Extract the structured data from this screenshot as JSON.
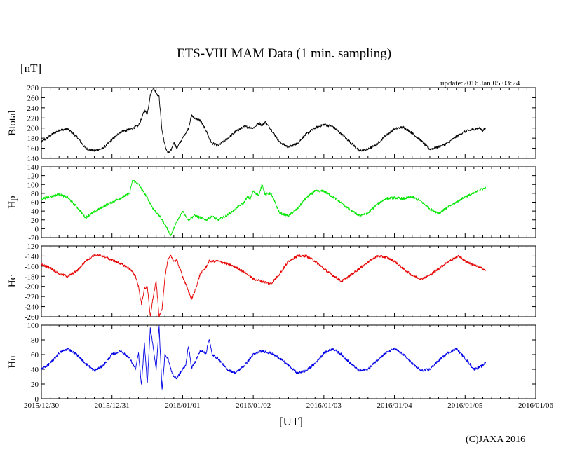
{
  "chart_data": {
    "type": "line",
    "title": "ETS-VIII MAM Data (1 min. sampling)",
    "y_unit": "[nT]",
    "x_unit": "[UT]",
    "update": "update:2016 Jan 05 03:24",
    "credit": "(C)JAXA 2016",
    "x_tick_labels": [
      "2015/12/30",
      "2015/12/31",
      "2016/01/01",
      "2016/01/02",
      "2016/01/03",
      "2016/01/04",
      "2016/01/05",
      "2016/01/06"
    ],
    "x_range_hours": [
      0,
      168
    ],
    "panels": [
      {
        "name": "Btotal",
        "color": "#000000",
        "ylim": [
          140,
          280
        ],
        "yticks": [
          140,
          160,
          180,
          200,
          220,
          240,
          260,
          280
        ],
        "x_hours": [
          0,
          3,
          6,
          9,
          12,
          15,
          18,
          21,
          24,
          27,
          30,
          33,
          34,
          35,
          36,
          37,
          38,
          39,
          40,
          41,
          42,
          43,
          44,
          45,
          46,
          48,
          50,
          51,
          52,
          54,
          56,
          57,
          58,
          60,
          63,
          66,
          69,
          72,
          74,
          75,
          76,
          78,
          81,
          84,
          87,
          90,
          93,
          96,
          99,
          102,
          105,
          108,
          111,
          114,
          117,
          120,
          123,
          126,
          129,
          132,
          135,
          138,
          141,
          144,
          147,
          149,
          150,
          151
        ],
        "values": [
          172,
          185,
          196,
          198,
          183,
          160,
          155,
          160,
          177,
          193,
          197,
          205,
          218,
          235,
          228,
          265,
          280,
          270,
          262,
          195,
          165,
          150,
          155,
          172,
          160,
          180,
          200,
          225,
          220,
          215,
          195,
          180,
          170,
          165,
          178,
          193,
          203,
          200,
          210,
          205,
          212,
          198,
          172,
          162,
          170,
          188,
          200,
          207,
          203,
          188,
          172,
          155,
          158,
          168,
          185,
          198,
          202,
          190,
          175,
          158,
          163,
          170,
          183,
          193,
          198,
          200,
          195,
          199
        ]
      },
      {
        "name": "Hp",
        "color": "#00e600",
        "ylim": [
          -20,
          140
        ],
        "yticks": [
          -20,
          0,
          20,
          40,
          60,
          80,
          100,
          120,
          140
        ],
        "x_hours": [
          0,
          3,
          6,
          9,
          12,
          15,
          18,
          21,
          24,
          27,
          30,
          31,
          32,
          33,
          34,
          36,
          38,
          40,
          42,
          44,
          46,
          48,
          50,
          52,
          54,
          56,
          58,
          60,
          63,
          66,
          69,
          70,
          71,
          72,
          74,
          75,
          76,
          78,
          81,
          84,
          87,
          90,
          93,
          96,
          99,
          102,
          105,
          108,
          111,
          114,
          117,
          120,
          123,
          126,
          129,
          132,
          135,
          138,
          141,
          144,
          147,
          149,
          150,
          151
        ],
        "values": [
          68,
          72,
          78,
          70,
          50,
          25,
          38,
          50,
          60,
          70,
          80,
          110,
          105,
          100,
          90,
          70,
          45,
          30,
          10,
          -15,
          15,
          40,
          20,
          30,
          25,
          20,
          28,
          20,
          30,
          45,
          60,
          72,
          68,
          85,
          75,
          102,
          78,
          80,
          35,
          30,
          45,
          70,
          85,
          85,
          72,
          58,
          42,
          30,
          35,
          55,
          68,
          70,
          68,
          72,
          62,
          45,
          35,
          48,
          60,
          72,
          80,
          88,
          90,
          92
        ]
      },
      {
        "name": "Hc",
        "color": "#e60000",
        "ylim": [
          -260,
          -120
        ],
        "yticks": [
          -260,
          -240,
          -220,
          -200,
          -180,
          -160,
          -140,
          -120
        ],
        "x_hours": [
          0,
          3,
          6,
          9,
          12,
          15,
          18,
          21,
          24,
          27,
          30,
          32,
          33,
          34,
          35,
          36,
          37,
          38,
          39,
          40,
          41,
          42,
          43,
          44,
          45,
          46,
          48,
          50,
          51,
          52,
          54,
          56,
          57,
          60,
          63,
          66,
          69,
          72,
          75,
          78,
          81,
          84,
          87,
          90,
          93,
          96,
          99,
          102,
          105,
          108,
          111,
          114,
          117,
          120,
          123,
          126,
          129,
          132,
          135,
          138,
          141,
          142,
          144,
          147,
          150,
          151
        ],
        "values": [
          -157,
          -163,
          -175,
          -180,
          -170,
          -150,
          -138,
          -140,
          -148,
          -155,
          -165,
          -180,
          -200,
          -235,
          -205,
          -200,
          -260,
          -220,
          -190,
          -260,
          -245,
          -180,
          -148,
          -140,
          -150,
          -148,
          -180,
          -210,
          -225,
          -212,
          -175,
          -162,
          -150,
          -150,
          -155,
          -162,
          -172,
          -185,
          -190,
          -195,
          -175,
          -150,
          -140,
          -140,
          -150,
          -165,
          -178,
          -190,
          -178,
          -165,
          -152,
          -140,
          -142,
          -150,
          -165,
          -178,
          -185,
          -178,
          -165,
          -152,
          -142,
          -140,
          -150,
          -158,
          -165,
          -168
        ]
      },
      {
        "name": "Hn",
        "color": "#0000e6",
        "ylim": [
          0,
          100
        ],
        "yticks": [
          0,
          20,
          40,
          60,
          80,
          100
        ],
        "x_hours": [
          0,
          3,
          6,
          9,
          12,
          15,
          18,
          21,
          24,
          27,
          30,
          32,
          33,
          34,
          35,
          36,
          37,
          38,
          39,
          40,
          41,
          42,
          43,
          44,
          45,
          46,
          48,
          49,
          50,
          51,
          52,
          54,
          56,
          57,
          58,
          60,
          63,
          66,
          69,
          72,
          75,
          78,
          81,
          84,
          87,
          90,
          93,
          96,
          99,
          102,
          105,
          108,
          111,
          114,
          117,
          120,
          123,
          126,
          129,
          132,
          135,
          138,
          141,
          144,
          147,
          150,
          151
        ],
        "values": [
          40,
          48,
          62,
          68,
          60,
          48,
          38,
          45,
          60,
          65,
          55,
          40,
          62,
          18,
          75,
          20,
          95,
          70,
          40,
          98,
          12,
          60,
          55,
          40,
          30,
          28,
          40,
          45,
          72,
          42,
          48,
          65,
          62,
          82,
          60,
          55,
          40,
          35,
          45,
          60,
          65,
          62,
          55,
          45,
          35,
          38,
          48,
          62,
          68,
          60,
          48,
          38,
          40,
          52,
          62,
          68,
          60,
          48,
          38,
          40,
          52,
          62,
          68,
          55,
          40,
          45,
          50
        ]
      }
    ]
  }
}
